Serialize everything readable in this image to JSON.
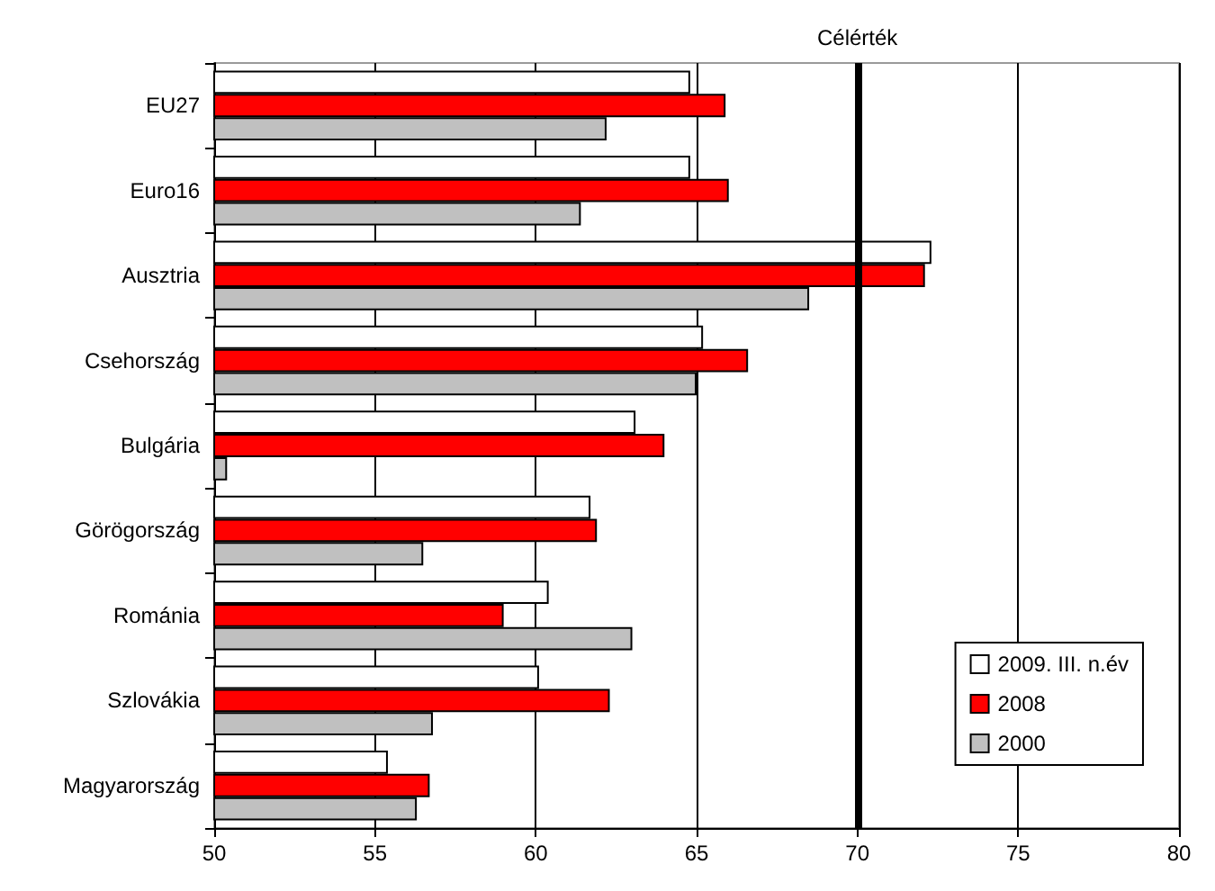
{
  "chart_data": {
    "type": "bar",
    "orientation": "horizontal",
    "categories": [
      "EU27",
      "Euro16",
      "Ausztria",
      "Csehország",
      "Bulgária",
      "Görögország",
      "Románia",
      "Szlovákia",
      "Magyarország"
    ],
    "series": [
      {
        "name": "2009. III. n.év",
        "color": "#ffffff",
        "values": [
          64.8,
          64.8,
          72.3,
          65.2,
          63.1,
          61.7,
          60.4,
          60.1,
          55.4
        ]
      },
      {
        "name": "2008",
        "color": "#ff0000",
        "values": [
          65.9,
          66.0,
          72.1,
          66.6,
          64.0,
          61.9,
          59.0,
          62.3,
          56.7
        ]
      },
      {
        "name": "2000",
        "color": "#c0c0c0",
        "values": [
          62.2,
          61.4,
          68.5,
          65.0,
          50.4,
          56.5,
          63.0,
          56.8,
          56.3
        ]
      }
    ],
    "xlim": [
      50,
      80
    ],
    "xticks": [
      50,
      55,
      60,
      65,
      70,
      75,
      80
    ],
    "ref_lines": [
      {
        "axis": "x",
        "value": 70,
        "label": "Célérték",
        "color": "#000000"
      }
    ],
    "grid": "x",
    "legend": "bottom right"
  }
}
